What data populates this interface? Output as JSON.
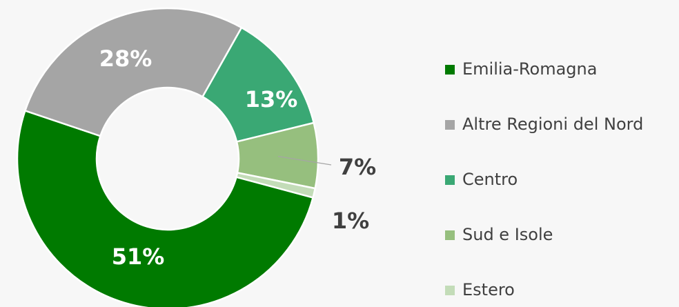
{
  "chart_data": {
    "type": "pie",
    "categories": [
      "Emilia-Romagna",
      "Altre Regioni del Nord",
      "Centro",
      "Sud e Isole",
      "Estero"
    ],
    "values": [
      51,
      28,
      13,
      7,
      1
    ],
    "value_labels": [
      "51%",
      "28%",
      "13%",
      "7%",
      "1%"
    ],
    "colors": [
      "#007a00",
      "#a5a5a5",
      "#3aa874",
      "#96bf7e",
      "#c3dcb8"
    ],
    "donut": true,
    "legend": "right"
  }
}
